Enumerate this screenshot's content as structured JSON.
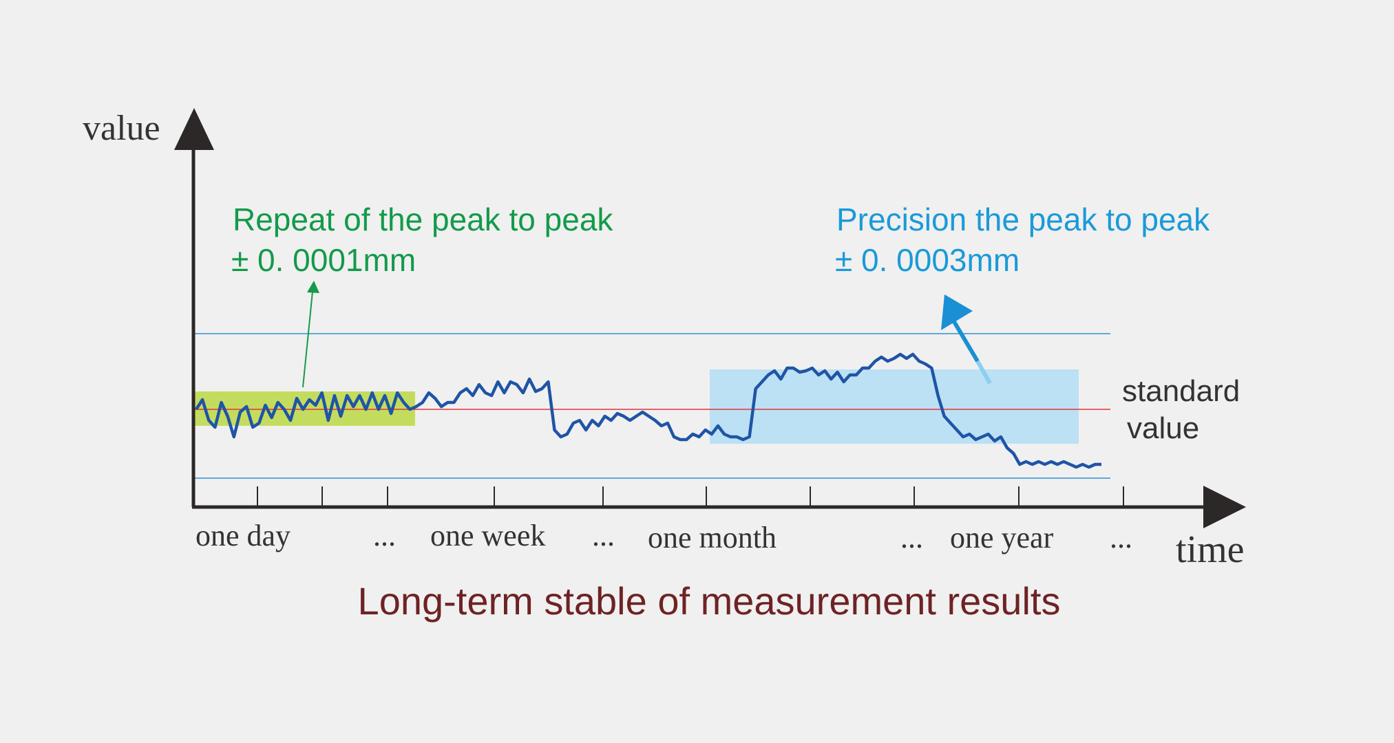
{
  "chart_data": {
    "type": "line",
    "title": "Long-term stable of measurement results",
    "xlabel": "time",
    "ylabel": "value",
    "x_ticks": [
      "one day",
      "...",
      "one week",
      "...",
      "one month",
      "...",
      "one year",
      "..."
    ],
    "standard_label": [
      "standard",
      "value"
    ],
    "ylim": [
      -1,
      1
    ],
    "band_upper": 0.55,
    "band_lower": -0.5,
    "standard_value": 0,
    "repeat_annotation": {
      "line1": "Repeat of the peak to peak",
      "line2": "± 0. 0001mm"
    },
    "precision_annotation": {
      "line1": "Precision the peak to peak",
      "line2": "± 0. 0003mm"
    },
    "series": [
      {
        "values": [
          0.0,
          0.07,
          -0.08,
          -0.13,
          0.05,
          -0.05,
          -0.2,
          -0.02,
          0.02,
          -0.13,
          -0.1,
          0.03,
          -0.06,
          0.05,
          0.0,
          -0.08,
          0.08,
          0.0,
          0.07,
          0.03,
          0.12,
          -0.08,
          0.1,
          -0.05,
          0.1,
          0.02,
          0.1,
          0.0,
          0.12,
          0.0,
          0.1,
          -0.03,
          0.12,
          0.05,
          0.0,
          0.02,
          0.05,
          0.12,
          0.08,
          0.02,
          0.05,
          0.05,
          0.12,
          0.15,
          0.1,
          0.18,
          0.12,
          0.1,
          0.2,
          0.12,
          0.2,
          0.18,
          0.12,
          0.22,
          0.13,
          0.15,
          0.2,
          -0.15,
          -0.2,
          -0.18,
          -0.1,
          -0.08,
          -0.15,
          -0.08,
          -0.12,
          -0.05,
          -0.08,
          -0.03,
          -0.05,
          -0.08,
          -0.05,
          -0.02,
          -0.05,
          -0.08,
          -0.12,
          -0.1,
          -0.2,
          -0.22,
          -0.22,
          -0.18,
          -0.2,
          -0.15,
          -0.18,
          -0.12,
          -0.18,
          -0.2,
          -0.2,
          -0.22,
          -0.2,
          0.15,
          0.2,
          0.25,
          0.28,
          0.22,
          0.3,
          0.3,
          0.27,
          0.28,
          0.3,
          0.25,
          0.28,
          0.22,
          0.27,
          0.2,
          0.25,
          0.25,
          0.3,
          0.3,
          0.35,
          0.38,
          0.35,
          0.37,
          0.4,
          0.37,
          0.4,
          0.35,
          0.33,
          0.3,
          0.1,
          -0.05,
          -0.1,
          -0.15,
          -0.2,
          -0.18,
          -0.22,
          -0.2,
          -0.18,
          -0.23,
          -0.2,
          -0.28,
          -0.32,
          -0.4,
          -0.38,
          -0.4,
          -0.38,
          -0.4,
          -0.38,
          -0.4,
          -0.38,
          -0.4,
          -0.42,
          -0.4,
          -0.42,
          -0.4,
          -0.4
        ]
      }
    ],
    "colors": {
      "background": "#f0f0f0",
      "axis": "#2b2827",
      "series": "#1f54a6",
      "standard_line": "#e0343c",
      "band_line": "#2e8fd4",
      "repeat_fill": "#c4dc5e",
      "precision_fill": "#bce0f4",
      "repeat_text": "#139a4a",
      "precision_text": "#1a9ad8",
      "title": "#6e2224",
      "tick_label": "#333333"
    }
  }
}
